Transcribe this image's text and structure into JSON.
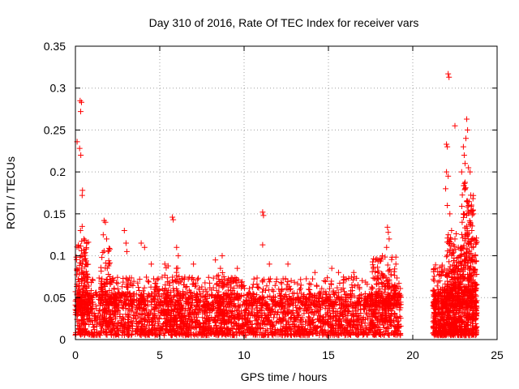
{
  "chart_data": {
    "type": "scatter",
    "title": "Day 310 of 2016, Rate Of TEC Index for receiver vars",
    "xlabel": "GPS time / hours",
    "ylabel": "ROTI / TECUs",
    "xlim": [
      0,
      25
    ],
    "ylim": [
      0,
      0.35
    ],
    "xticks": [
      "0",
      "5",
      "10",
      "15",
      "20",
      "25"
    ],
    "yticks": [
      "0",
      "0.05",
      "0.1",
      "0.15",
      "0.2",
      "0.25",
      "0.3",
      "0.35"
    ],
    "grid": true,
    "marker": "plus",
    "color": "#ff0000",
    "series": [
      {
        "name": "ROTI",
        "points": [
          [
            0.1,
            0.236
          ],
          [
            0.25,
            0.228
          ],
          [
            0.32,
            0.22
          ],
          [
            0.4,
            0.172
          ],
          [
            0.42,
            0.178
          ],
          [
            0.28,
            0.285
          ],
          [
            0.31,
            0.272
          ],
          [
            0.36,
            0.283
          ],
          [
            0.3,
            0.13
          ],
          [
            0.4,
            0.135
          ],
          [
            0.5,
            0.12
          ],
          [
            0.55,
            0.1
          ],
          [
            0.2,
            0.11
          ],
          [
            0.6,
            0.09
          ],
          [
            1.7,
            0.142
          ],
          [
            1.78,
            0.14
          ],
          [
            1.65,
            0.125
          ],
          [
            1.85,
            0.12
          ],
          [
            2.0,
            0.09
          ],
          [
            2.9,
            0.13
          ],
          [
            3.0,
            0.115
          ],
          [
            3.05,
            0.105
          ],
          [
            3.9,
            0.115
          ],
          [
            4.1,
            0.11
          ],
          [
            4.5,
            0.09
          ],
          [
            5.75,
            0.146
          ],
          [
            5.8,
            0.143
          ],
          [
            5.3,
            0.09
          ],
          [
            6.0,
            0.11
          ],
          [
            6.1,
            0.1
          ],
          [
            7.0,
            0.09
          ],
          [
            8.3,
            0.095
          ],
          [
            8.7,
            0.1
          ],
          [
            9.6,
            0.085
          ],
          [
            11.1,
            0.152
          ],
          [
            11.15,
            0.148
          ],
          [
            11.1,
            0.113
          ],
          [
            11.5,
            0.09
          ],
          [
            12.6,
            0.09
          ],
          [
            14.2,
            0.08
          ],
          [
            15.2,
            0.085
          ],
          [
            15.6,
            0.08
          ],
          [
            16.5,
            0.08
          ],
          [
            17.8,
            0.095
          ],
          [
            18.2,
            0.1
          ],
          [
            18.5,
            0.134
          ],
          [
            18.55,
            0.128
          ],
          [
            18.6,
            0.12
          ],
          [
            18.45,
            0.11
          ],
          [
            19.0,
            0.09
          ],
          [
            22.1,
            0.317
          ],
          [
            22.15,
            0.313
          ],
          [
            22.0,
            0.233
          ],
          [
            22.05,
            0.23
          ],
          [
            22.0,
            0.2
          ],
          [
            22.1,
            0.195
          ],
          [
            21.95,
            0.18
          ],
          [
            22.05,
            0.16
          ],
          [
            22.2,
            0.15
          ],
          [
            22.5,
            0.255
          ],
          [
            22.3,
            0.13
          ],
          [
            22.5,
            0.12
          ],
          [
            22.7,
            0.11
          ],
          [
            23.0,
            0.23
          ],
          [
            23.05,
            0.22
          ],
          [
            23.1,
            0.21
          ],
          [
            22.9,
            0.2
          ],
          [
            23.2,
            0.263
          ],
          [
            23.25,
            0.25
          ],
          [
            23.15,
            0.24
          ],
          [
            23.3,
            0.205
          ],
          [
            23.4,
            0.2
          ],
          [
            23.1,
            0.18
          ],
          [
            23.2,
            0.165
          ],
          [
            23.3,
            0.16
          ],
          [
            23.0,
            0.15
          ],
          [
            23.4,
            0.14
          ],
          [
            23.5,
            0.13
          ],
          [
            23.6,
            0.15
          ],
          [
            23.7,
            0.1
          ],
          [
            23.5,
            0.11
          ],
          [
            23.3,
            0.12
          ],
          [
            22.8,
            0.1
          ],
          [
            21.6,
            0.07
          ],
          [
            21.8,
            0.08
          ],
          [
            21.9,
            0.06
          ],
          [
            23.6,
            0.08
          ]
        ],
        "bands": [
          {
            "x": [
              0.0,
              19.3
            ],
            "y": [
              0.005,
              0.055
            ],
            "density": 2400
          },
          {
            "x": [
              0.0,
              19.3
            ],
            "y": [
              0.04,
              0.075
            ],
            "density": 700
          },
          {
            "x": [
              0.05,
              0.8
            ],
            "y": [
              0.03,
              0.12
            ],
            "density": 150
          },
          {
            "x": [
              1.5,
              2.1
            ],
            "y": [
              0.02,
              0.11
            ],
            "density": 70
          },
          {
            "x": [
              5.3,
              6.3
            ],
            "y": [
              0.02,
              0.09
            ],
            "density": 70
          },
          {
            "x": [
              8.3,
              9.3
            ],
            "y": [
              0.02,
              0.085
            ],
            "density": 60
          },
          {
            "x": [
              17.6,
              19.0
            ],
            "y": [
              0.02,
              0.1
            ],
            "density": 140
          },
          {
            "x": [
              21.2,
              23.8
            ],
            "y": [
              0.005,
              0.06
            ],
            "density": 700
          },
          {
            "x": [
              21.2,
              23.8
            ],
            "y": [
              0.04,
              0.09
            ],
            "density": 200
          },
          {
            "x": [
              22.0,
              23.8
            ],
            "y": [
              0.06,
              0.13
            ],
            "density": 160
          },
          {
            "x": [
              22.9,
              23.6
            ],
            "y": [
              0.09,
              0.19
            ],
            "density": 70
          }
        ]
      }
    ]
  }
}
